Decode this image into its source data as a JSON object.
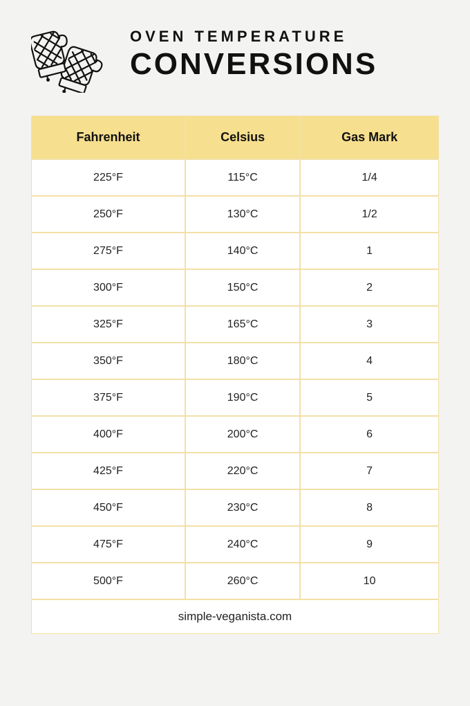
{
  "header": {
    "supertitle": "OVEN TEMPERATURE",
    "title": "CONVERSIONS"
  },
  "table": {
    "type": "table",
    "header_bg": "#f6df8e",
    "border_color": "#f3e0a7",
    "background_color": "#ffffff",
    "header_fontsize": 18,
    "cell_fontsize": 16,
    "columns": [
      "Fahrenheit",
      "Celsius",
      "Gas Mark"
    ],
    "rows": [
      [
        "225°F",
        "115°C",
        "1/4"
      ],
      [
        "250°F",
        "130°C",
        "1/2"
      ],
      [
        "275°F",
        "140°C",
        "1"
      ],
      [
        "300°F",
        "150°C",
        "2"
      ],
      [
        "325°F",
        "165°C",
        "3"
      ],
      [
        "350°F",
        "180°C",
        "4"
      ],
      [
        "375°F",
        "190°C",
        "5"
      ],
      [
        "400°F",
        "200°C",
        "6"
      ],
      [
        "425°F",
        "220°C",
        "7"
      ],
      [
        "450°F",
        "230°C",
        "8"
      ],
      [
        "475°F",
        "240°C",
        "9"
      ],
      [
        "500°F",
        "260°C",
        "10"
      ]
    ]
  },
  "footer": {
    "attribution": "simple-veganista.com"
  },
  "colors": {
    "page_bg": "#f3f3f1",
    "text": "#111111"
  }
}
